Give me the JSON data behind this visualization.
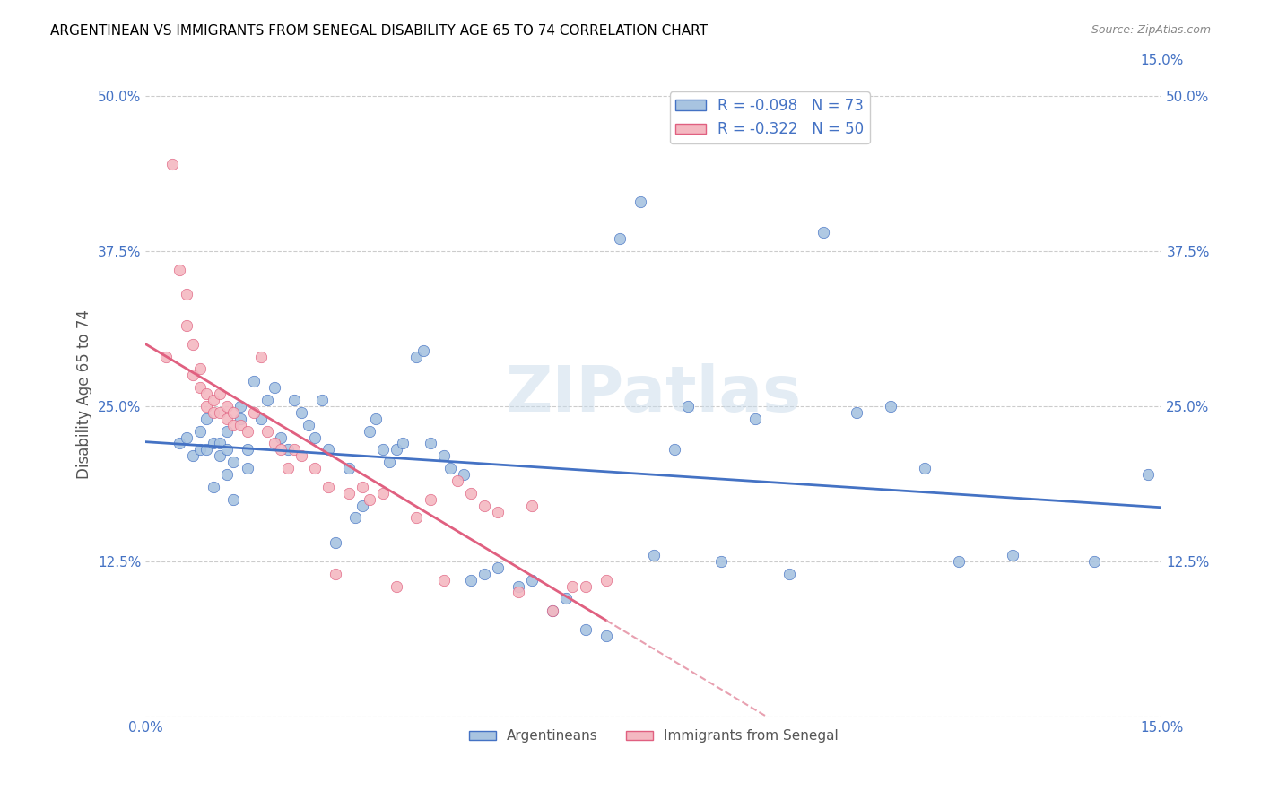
{
  "title": "ARGENTINEAN VS IMMIGRANTS FROM SENEGAL DISABILITY AGE 65 TO 74 CORRELATION CHART",
  "source": "Source: ZipAtlas.com",
  "ylabel": "Disability Age 65 to 74",
  "xlim": [
    0.0,
    0.15
  ],
  "ylim": [
    0.0,
    0.52
  ],
  "yticks": [
    0.0,
    0.125,
    0.25,
    0.375,
    0.5
  ],
  "ytick_labels": [
    "",
    "12.5%",
    "25.0%",
    "37.5%",
    "50.0%"
  ],
  "xticks": [
    0.0,
    0.025,
    0.05,
    0.075,
    0.1,
    0.125,
    0.15
  ],
  "xtick_labels": [
    "0.0%",
    "",
    "",
    "",
    "",
    "",
    "15.0%"
  ],
  "R_arg": -0.098,
  "N_arg": 73,
  "R_sen": -0.322,
  "N_sen": 50,
  "color_arg": "#a8c4e0",
  "color_sen": "#f4b8c1",
  "line_color_arg": "#4472c4",
  "line_color_sen": "#e06080",
  "line_color_sen_dashed": "#e8a0b0",
  "watermark": "ZIPatlas",
  "argentineans_x": [
    0.005,
    0.006,
    0.007,
    0.008,
    0.008,
    0.009,
    0.009,
    0.01,
    0.01,
    0.011,
    0.011,
    0.012,
    0.012,
    0.012,
    0.013,
    0.013,
    0.014,
    0.014,
    0.015,
    0.015,
    0.016,
    0.017,
    0.018,
    0.019,
    0.02,
    0.021,
    0.022,
    0.023,
    0.024,
    0.025,
    0.026,
    0.027,
    0.028,
    0.03,
    0.031,
    0.032,
    0.033,
    0.034,
    0.035,
    0.036,
    0.037,
    0.038,
    0.04,
    0.041,
    0.042,
    0.044,
    0.045,
    0.047,
    0.048,
    0.05,
    0.052,
    0.055,
    0.057,
    0.06,
    0.062,
    0.065,
    0.068,
    0.07,
    0.073,
    0.075,
    0.078,
    0.08,
    0.085,
    0.09,
    0.095,
    0.1,
    0.105,
    0.11,
    0.115,
    0.12,
    0.128,
    0.14,
    0.148
  ],
  "argentineans_y": [
    0.22,
    0.225,
    0.21,
    0.215,
    0.23,
    0.24,
    0.215,
    0.22,
    0.185,
    0.21,
    0.22,
    0.195,
    0.215,
    0.23,
    0.205,
    0.175,
    0.24,
    0.25,
    0.2,
    0.215,
    0.27,
    0.24,
    0.255,
    0.265,
    0.225,
    0.215,
    0.255,
    0.245,
    0.235,
    0.225,
    0.255,
    0.215,
    0.14,
    0.2,
    0.16,
    0.17,
    0.23,
    0.24,
    0.215,
    0.205,
    0.215,
    0.22,
    0.29,
    0.295,
    0.22,
    0.21,
    0.2,
    0.195,
    0.11,
    0.115,
    0.12,
    0.105,
    0.11,
    0.085,
    0.095,
    0.07,
    0.065,
    0.385,
    0.415,
    0.13,
    0.215,
    0.25,
    0.125,
    0.24,
    0.115,
    0.39,
    0.245,
    0.25,
    0.2,
    0.125,
    0.13,
    0.125,
    0.195
  ],
  "senegal_x": [
    0.003,
    0.004,
    0.005,
    0.006,
    0.006,
    0.007,
    0.007,
    0.008,
    0.008,
    0.009,
    0.009,
    0.01,
    0.01,
    0.011,
    0.011,
    0.012,
    0.012,
    0.013,
    0.013,
    0.014,
    0.015,
    0.016,
    0.017,
    0.018,
    0.019,
    0.02,
    0.021,
    0.022,
    0.023,
    0.025,
    0.027,
    0.028,
    0.03,
    0.032,
    0.033,
    0.035,
    0.037,
    0.04,
    0.042,
    0.044,
    0.046,
    0.048,
    0.05,
    0.052,
    0.055,
    0.057,
    0.06,
    0.063,
    0.065,
    0.068
  ],
  "senegal_y": [
    0.29,
    0.445,
    0.36,
    0.315,
    0.34,
    0.275,
    0.3,
    0.265,
    0.28,
    0.25,
    0.26,
    0.245,
    0.255,
    0.245,
    0.26,
    0.24,
    0.25,
    0.235,
    0.245,
    0.235,
    0.23,
    0.245,
    0.29,
    0.23,
    0.22,
    0.215,
    0.2,
    0.215,
    0.21,
    0.2,
    0.185,
    0.115,
    0.18,
    0.185,
    0.175,
    0.18,
    0.105,
    0.16,
    0.175,
    0.11,
    0.19,
    0.18,
    0.17,
    0.165,
    0.1,
    0.17,
    0.085,
    0.105,
    0.105,
    0.11
  ]
}
